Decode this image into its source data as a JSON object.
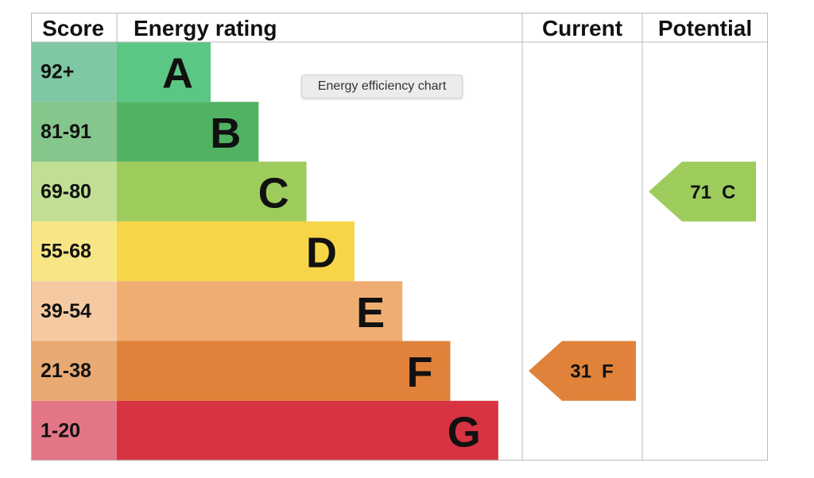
{
  "chart_data": {
    "type": "table",
    "headers": {
      "score": "Score",
      "rating": "Energy rating",
      "current": "Current",
      "potential": "Potential"
    },
    "bands": [
      {
        "range": "92+",
        "letter": "A",
        "bar_color": "#5cc784",
        "score_color": "#7fc8a3"
      },
      {
        "range": "81-91",
        "letter": "B",
        "bar_color": "#50b262",
        "score_color": "#85c68c"
      },
      {
        "range": "69-80",
        "letter": "C",
        "bar_color": "#9dcc5c",
        "score_color": "#c0df94"
      },
      {
        "range": "55-68",
        "letter": "D",
        "bar_color": "#f6d548",
        "score_color": "#f8e585"
      },
      {
        "range": "39-54",
        "letter": "E",
        "bar_color": "#f0ad71",
        "score_color": "#f5caa3"
      },
      {
        "range": "21-38",
        "letter": "F",
        "bar_color": "#e08239",
        "score_color": "#e8aa72"
      },
      {
        "range": "1-20",
        "letter": "G",
        "bar_color": "#d73341",
        "score_color": "#e37686"
      }
    ],
    "current": {
      "score": 31,
      "letter": "F",
      "color": "#e08239"
    },
    "potential": {
      "score": 71,
      "letter": "C",
      "color": "#9dcc5c"
    },
    "tooltip": "Energy efficiency chart"
  }
}
